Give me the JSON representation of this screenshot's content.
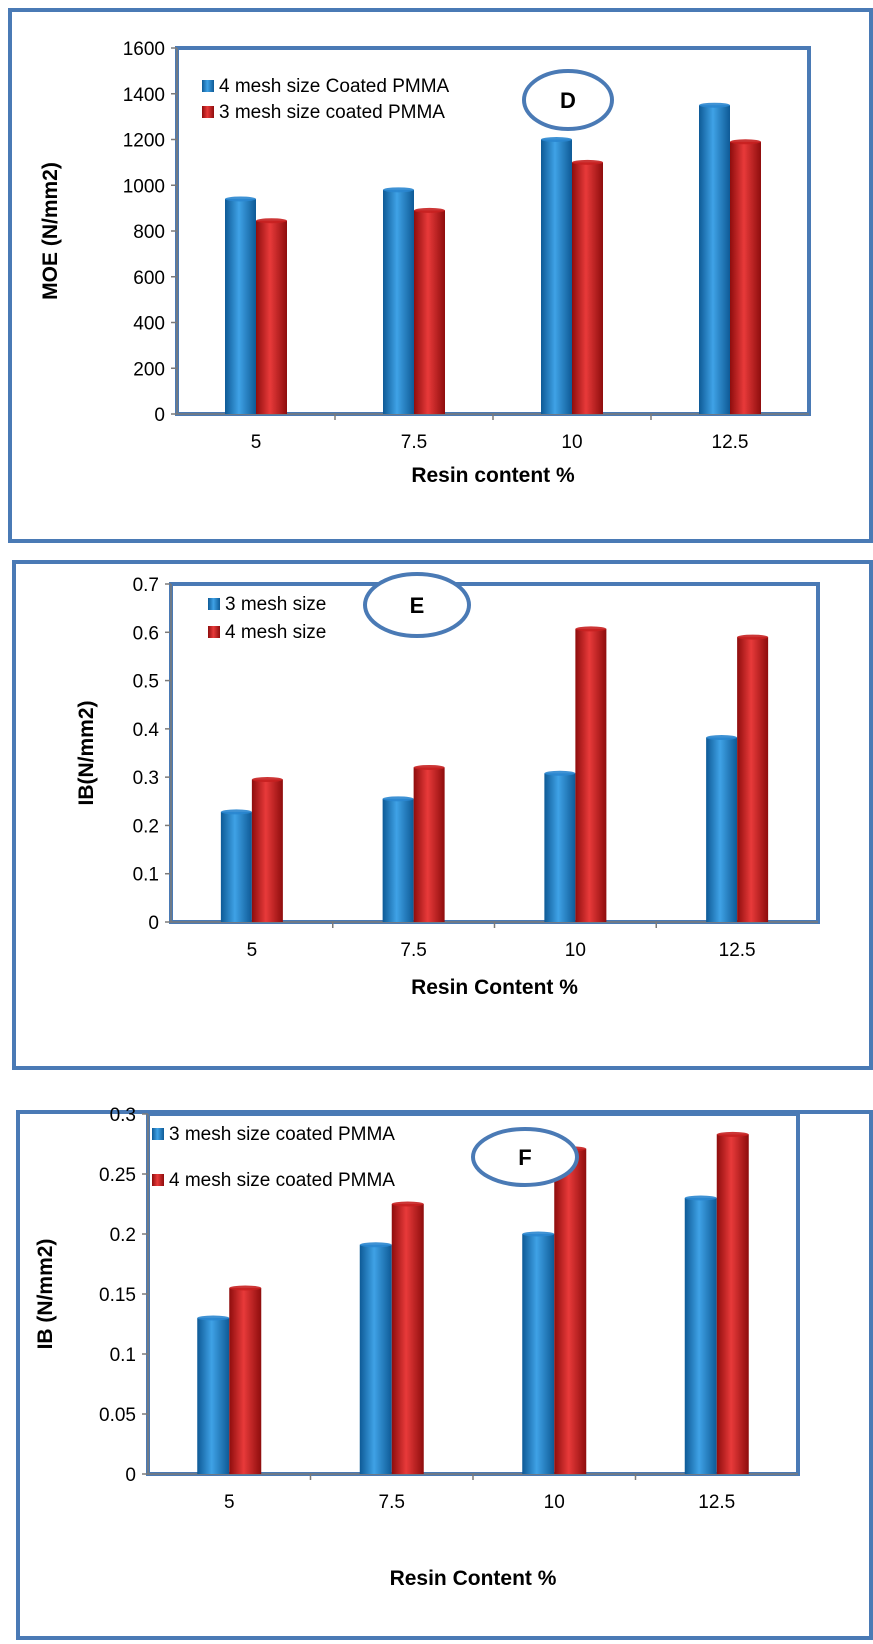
{
  "colors": {
    "blue": "#1a7ac4",
    "red": "#cc1a1a",
    "frame": "#4a7ab5"
  },
  "chart_data": [
    {
      "type": "bar",
      "panel_label": "D",
      "categories": [
        "5",
        "7.5",
        "10",
        "12.5"
      ],
      "series": [
        {
          "name": "4 mesh size Coated PMMA",
          "color": "blue",
          "values": [
            940,
            980,
            1200,
            1350
          ]
        },
        {
          "name": "3 mesh size coated PMMA",
          "color": "red",
          "values": [
            845,
            890,
            1100,
            1190
          ]
        }
      ],
      "xlabel": "Resin content %",
      "ylabel": "MOE (N/mm2)",
      "ylim": [
        0,
        1600
      ],
      "yticks": [
        "0",
        "200",
        "400",
        "600",
        "800",
        "1000",
        "1200",
        "1400",
        "1600"
      ],
      "grid": false,
      "legend": "top-left"
    },
    {
      "type": "bar",
      "panel_label": "E",
      "categories": [
        "5",
        "7.5",
        "10",
        "12.5"
      ],
      "series": [
        {
          "name": "3 mesh size",
          "color": "blue",
          "values": [
            0.228,
            0.255,
            0.308,
            0.382
          ]
        },
        {
          "name": "4 mesh size",
          "color": "red",
          "values": [
            0.295,
            0.32,
            0.607,
            0.59
          ]
        }
      ],
      "xlabel": "Resin Content %",
      "ylabel": "IB(N/mm2)",
      "ylim": [
        0,
        0.7
      ],
      "yticks": [
        "0",
        "0.1",
        "0.2",
        "0.3",
        "0.4",
        "0.5",
        "0.6",
        "0.7"
      ],
      "grid": false,
      "legend": "top-left"
    },
    {
      "type": "bar",
      "panel_label": "F",
      "categories": [
        "5",
        "7.5",
        "10",
        "12.5"
      ],
      "series": [
        {
          "name": "3 mesh size coated PMMA",
          "color": "blue",
          "values": [
            0.13,
            0.191,
            0.2,
            0.23
          ]
        },
        {
          "name": "4 mesh size coated PMMA",
          "color": "red",
          "values": [
            0.155,
            0.225,
            0.271,
            0.283
          ]
        }
      ],
      "xlabel": "Resin Content %",
      "ylabel": "IB (N/mm2)",
      "ylim": [
        0,
        0.3
      ],
      "yticks": [
        "0",
        "0.05",
        "0.1",
        "0.15",
        "0.2",
        "0.25",
        "0.3"
      ],
      "grid": false,
      "legend": "top-left"
    }
  ]
}
